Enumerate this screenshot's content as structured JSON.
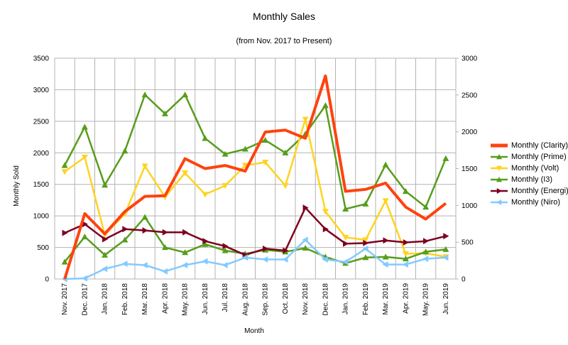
{
  "chart_data": {
    "type": "line",
    "title": "Monthly Sales",
    "subtitle": "(from Nov. 2017 to Present)",
    "xlabel": "Month",
    "ylabel": "Monthly Sold",
    "ylim": [
      0,
      3500
    ],
    "y2lim": [
      0,
      3000
    ],
    "yticks": [
      "0",
      "500",
      "1000",
      "1500",
      "2000",
      "2500",
      "3000",
      "3500"
    ],
    "y2ticks": [
      "0",
      "500",
      "1000",
      "1500",
      "2000",
      "2500",
      "3000"
    ],
    "grid": true,
    "legend_position": "right",
    "categories": [
      "Nov. 2017",
      "Dec. 2017",
      "Jan. 2018",
      "Feb. 2018",
      "Mar. 2018",
      "Apr. 2018",
      "May. 2018",
      "Jun. 2018",
      "Jul. 2018",
      "Aug. 2018",
      "Sep. 2018",
      "Oct. 2018",
      "Nov. 2018",
      "Dec. 2018",
      "Jan. 2019",
      "Feb. 2019",
      "Mar. 2019",
      "Apr. 2019",
      "May. 2019",
      "Jun. 2019"
    ],
    "series": [
      {
        "name": "Monthly (Clarity)",
        "color": "#ff420e",
        "marker": "none",
        "width": 4,
        "values": [
          0,
          1036,
          716,
          1069,
          1310,
          1320,
          1907,
          1750,
          1800,
          1710,
          2330,
          2360,
          2230,
          3220,
          1390,
          1420,
          1520,
          1140,
          950,
          1200
        ]
      },
      {
        "name": "Monthly (Prime)",
        "color": "#579d1c",
        "marker": "triangle-up",
        "width": 2.5,
        "values": [
          1800,
          2410,
          1490,
          2030,
          2920,
          2620,
          2920,
          2230,
          1980,
          2060,
          2200,
          2000,
          2300,
          2750,
          1110,
          1190,
          1810,
          1390,
          1140,
          1910
        ]
      },
      {
        "name": "Monthly (Volt)",
        "color": "#ffd320",
        "marker": "triangle-down",
        "width": 2.5,
        "values": [
          1700,
          1930,
          700,
          1030,
          1790,
          1300,
          1680,
          1340,
          1480,
          1800,
          1850,
          1480,
          2530,
          1070,
          660,
          620,
          1240,
          400,
          410,
          350
        ]
      },
      {
        "name": "Monthly (I3)",
        "color": "#579d1c",
        "marker": "triangle-up",
        "width": 2.5,
        "values": [
          270,
          670,
          380,
          620,
          980,
          500,
          420,
          550,
          450,
          400,
          460,
          430,
          490,
          350,
          250,
          340,
          350,
          320,
          430,
          470
        ]
      },
      {
        "name": "Monthly (Energi)",
        "color": "#7e0021",
        "marker": "triangle-right",
        "width": 2.5,
        "values": [
          730,
          870,
          630,
          790,
          770,
          740,
          740,
          600,
          520,
          380,
          480,
          450,
          1130,
          790,
          560,
          570,
          610,
          580,
          600,
          680
        ]
      },
      {
        "name": "Monthly (Niro)",
        "color": "#83caff",
        "marker": "triangle-left",
        "width": 2.5,
        "values": [
          0,
          10,
          160,
          240,
          220,
          120,
          220,
          280,
          220,
          340,
          310,
          310,
          620,
          310,
          270,
          480,
          230,
          230,
          320,
          340
        ]
      }
    ]
  }
}
